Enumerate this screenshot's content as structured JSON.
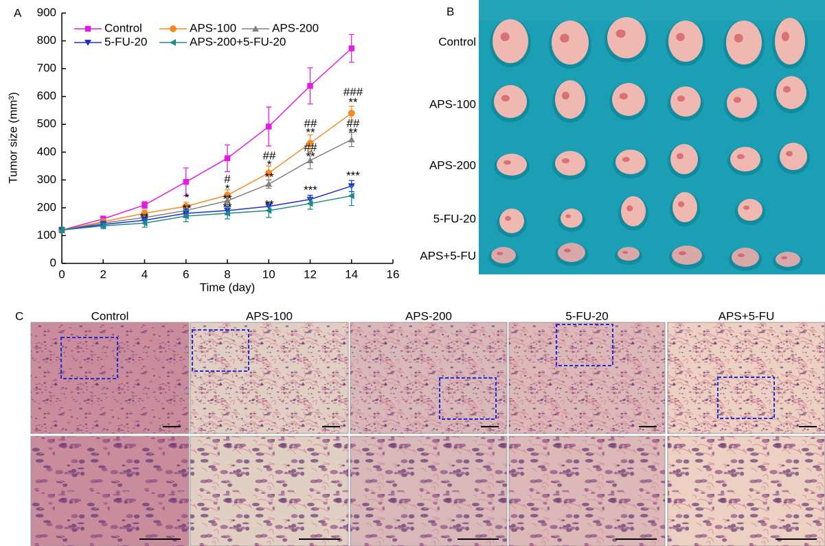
{
  "panel_labels": [
    "A",
    "B",
    "C"
  ],
  "chart_data": {
    "type": "line",
    "x_label": "Time (day)",
    "y_label": "Tumor size (mm³)",
    "x": [
      0,
      2,
      4,
      6,
      8,
      10,
      12,
      14
    ],
    "xlim": [
      0,
      16
    ],
    "xticks": [
      0,
      2,
      4,
      6,
      8,
      10,
      12,
      14,
      16
    ],
    "ylim": [
      0,
      900
    ],
    "yticks": [
      0,
      100,
      200,
      300,
      400,
      500,
      600,
      700,
      800,
      900
    ],
    "series": [
      {
        "name": "Control",
        "color": "#e31ce3",
        "marker": "square",
        "values": [
          120,
          160,
          210,
          293,
          378,
          492,
          638,
          773
        ],
        "errors": [
          10,
          10,
          12,
          50,
          48,
          70,
          65,
          50
        ]
      },
      {
        "name": "APS-100",
        "color": "#f7891e",
        "marker": "circle",
        "values": [
          120,
          150,
          180,
          205,
          245,
          325,
          432,
          540
        ],
        "errors": [
          10,
          10,
          12,
          15,
          20,
          25,
          30,
          25
        ]
      },
      {
        "name": "APS-200",
        "color": "#808080",
        "marker": "triangle-up",
        "values": [
          120,
          145,
          165,
          190,
          225,
          285,
          370,
          445
        ],
        "errors": [
          10,
          10,
          12,
          15,
          20,
          15,
          30,
          25
        ]
      },
      {
        "name": "5-FU-20",
        "color": "#1f2ccf",
        "marker": "triangle-down",
        "values": [
          120,
          140,
          155,
          180,
          190,
          205,
          230,
          278
        ],
        "errors": [
          10,
          10,
          10,
          15,
          15,
          15,
          15,
          20
        ]
      },
      {
        "name": "APS-200+5-FU-20",
        "color": "#1a8c8c",
        "marker": "triangle-left",
        "values": [
          120,
          135,
          145,
          170,
          180,
          190,
          215,
          243
        ],
        "errors": [
          10,
          10,
          15,
          20,
          20,
          25,
          20,
          35
        ]
      }
    ],
    "annotations": [
      "**",
      "*",
      "**",
      "#",
      "*",
      "**",
      "**",
      "##",
      "*",
      "**",
      "**",
      "##",
      "**",
      "##",
      "**",
      "***",
      "###",
      "**",
      "##",
      "**",
      "***"
    ]
  },
  "photo_panel": {
    "row_labels": [
      "Control",
      "APS-100",
      "APS-200",
      "5-FU-20",
      "APS+5-FU"
    ]
  },
  "histology_panel": {
    "column_titles": [
      "Control",
      "APS-100",
      "APS-200",
      "5-FU-20",
      "APS+5-FU"
    ]
  }
}
